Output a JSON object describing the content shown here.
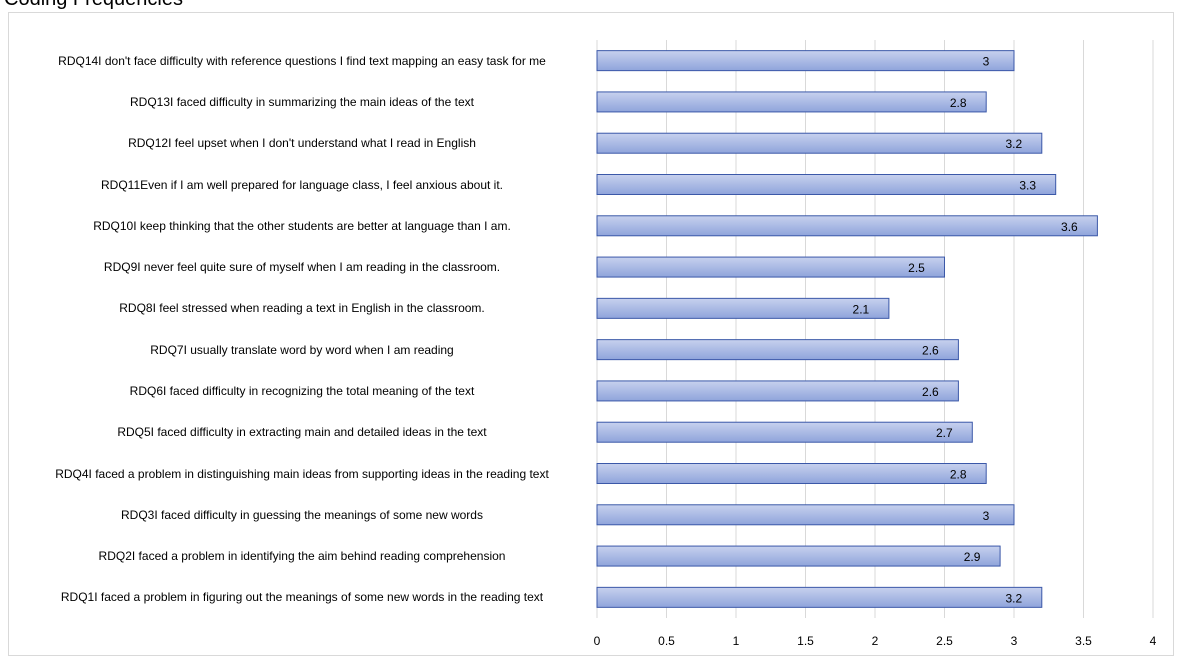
{
  "title_fragment": "Coding Frequencies",
  "chart_data": {
    "type": "bar",
    "orientation": "horizontal",
    "categories": [
      "RDQ14I don't face difficulty with reference questions I find text mapping an easy task for me",
      "RDQ13I faced difficulty in summarizing the main ideas of the text",
      "RDQ12I feel upset when I don't understand what I read in English",
      "RDQ11Even if I am well prepared for language class, I feel anxious about it.",
      "RDQ10I keep thinking that the other students are better at language than I am.",
      "RDQ9I never feel quite sure of myself when I am reading in the classroom.",
      "RDQ8I feel stressed when reading a text in English in the classroom.",
      "RDQ7I usually translate word by word when I am reading",
      "RDQ6I faced difficulty in recognizing the total meaning of the text",
      "RDQ5I faced difficulty in extracting main and detailed ideas in the text",
      "RDQ4I faced a problem in distinguishing main ideas from supporting ideas in the reading text",
      "RDQ3I faced difficulty in guessing the meanings of some new words",
      "RDQ2I faced a problem in identifying the aim behind reading comprehension",
      "RDQ1I faced a problem in figuring out the meanings of some new words in the reading text"
    ],
    "values": [
      3,
      2.8,
      3.2,
      3.3,
      3.6,
      2.5,
      2.1,
      2.6,
      2.6,
      2.7,
      2.8,
      3,
      2.9,
      3.2
    ],
    "data_labels": [
      "3",
      "2.8",
      "3.2",
      "3.3",
      "3.6",
      "2.5",
      "2.1",
      "2.6",
      "2.6",
      "2.7",
      "2.8",
      "3",
      "2.9",
      "3.2"
    ],
    "xlim": [
      0,
      4
    ],
    "x_ticks": [
      "0",
      "0.5",
      "1",
      "1.5",
      "2",
      "2.5",
      "3",
      "3.5",
      "4"
    ],
    "grid": true,
    "legend": false,
    "bar_fill_top": "#c7d1ee",
    "bar_fill_bottom": "#8fa4db",
    "bar_stroke": "#3b58a8",
    "grid_color": "#d9d9d9"
  }
}
